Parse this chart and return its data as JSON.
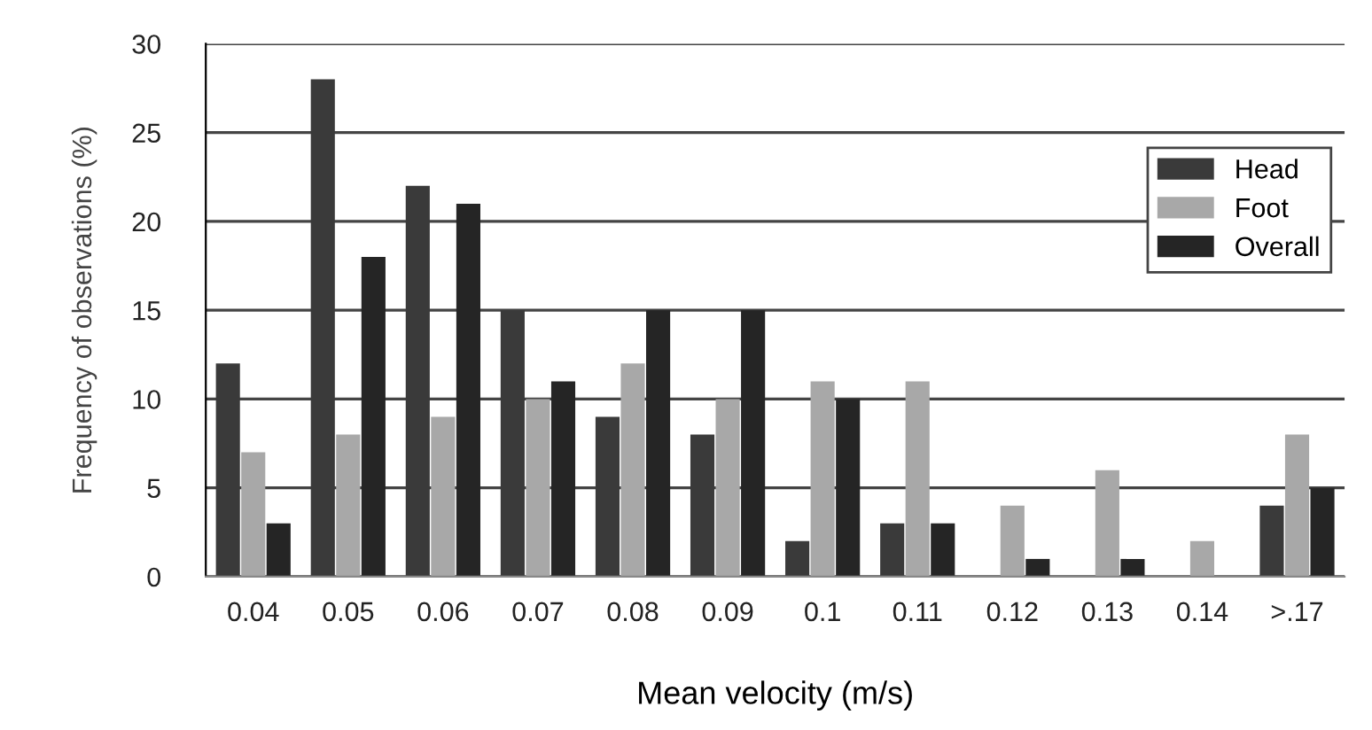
{
  "chart_data": {
    "type": "bar",
    "xlabel": "Mean velocity (m/s)",
    "ylabel": "Frequency of observations (%)",
    "categories": [
      "0.04",
      "0.05",
      "0.06",
      "0.07",
      "0.08",
      "0.09",
      "0.1",
      "0.11",
      "0.12",
      "0.13",
      "0.14",
      ">.17"
    ],
    "series": [
      {
        "name": "Head",
        "color": "#3a3a3a",
        "values": [
          12,
          28,
          22,
          15,
          9,
          8,
          2,
          3,
          0,
          0,
          0,
          4
        ]
      },
      {
        "name": "Foot",
        "color": "#a8a8a8",
        "values": [
          7,
          8,
          9,
          10,
          12,
          10,
          11,
          11,
          4,
          6,
          2,
          8
        ]
      },
      {
        "name": "Overall",
        "color": "#252525",
        "values": [
          3,
          18,
          21,
          11,
          15,
          15,
          10,
          3,
          1,
          1,
          0,
          5
        ]
      }
    ],
    "ylim": [
      0,
      30
    ],
    "yticks": [
      0,
      5,
      10,
      15,
      20,
      25,
      30
    ],
    "grid": "y",
    "legend": "top right"
  }
}
